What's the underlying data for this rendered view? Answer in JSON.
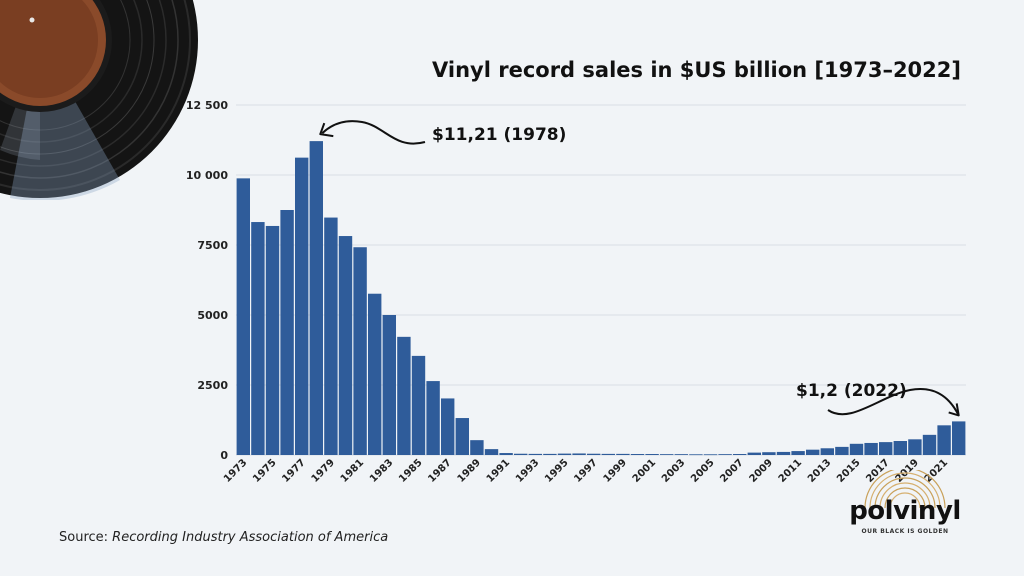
{
  "chart_data": {
    "type": "bar",
    "title": "Vinyl record sales in $US billion [1973–2022]",
    "xlabel": "",
    "ylabel": "",
    "ylim": [
      0,
      12500
    ],
    "yticks": [
      {
        "value": 0,
        "label": "0"
      },
      {
        "value": 2500,
        "label": "2500"
      },
      {
        "value": 5000,
        "label": "5000"
      },
      {
        "value": 7500,
        "label": "7500"
      },
      {
        "value": 10000,
        "label": "10 000"
      },
      {
        "value": 12500,
        "label": "12 500"
      }
    ],
    "grid": "horizontal",
    "bar_color": "#2f5c9a",
    "categories": [
      "1973",
      "1974",
      "1975",
      "1976",
      "1977",
      "1978",
      "1979",
      "1980",
      "1981",
      "1982",
      "1983",
      "1984",
      "1985",
      "1986",
      "1987",
      "1988",
      "1989",
      "1990",
      "1991",
      "1992",
      "1993",
      "1994",
      "1995",
      "1996",
      "1997",
      "1998",
      "1999",
      "2000",
      "2001",
      "2002",
      "2003",
      "2004",
      "2005",
      "2006",
      "2007",
      "2008",
      "2009",
      "2010",
      "2011",
      "2012",
      "2013",
      "2014",
      "2015",
      "2016",
      "2017",
      "2018",
      "2019",
      "2020",
      "2021",
      "2022"
    ],
    "xtick_labels": [
      "1973",
      "1975",
      "1977",
      "1979",
      "1981",
      "1983",
      "1985",
      "1987",
      "1989",
      "1991",
      "1993",
      "1995",
      "1997",
      "1999",
      "2001",
      "2003",
      "2005",
      "2007",
      "2009",
      "2011",
      "2013",
      "2015",
      "2017",
      "2019",
      "2021"
    ],
    "values": [
      9880,
      8320,
      8180,
      8750,
      10620,
      11210,
      8480,
      7820,
      7420,
      5760,
      5000,
      4220,
      3540,
      2640,
      2020,
      1320,
      530,
      210,
      70,
      45,
      40,
      40,
      50,
      55,
      45,
      40,
      40,
      35,
      35,
      30,
      30,
      25,
      25,
      30,
      35,
      85,
      100,
      110,
      140,
      190,
      240,
      290,
      400,
      430,
      460,
      500,
      560,
      720,
      1060,
      1200
    ],
    "annotations": [
      {
        "text": "$11,21 (1978)",
        "category": "1978"
      },
      {
        "text": "$1,2 (2022)",
        "category": "2022"
      }
    ],
    "source_label": "Source:",
    "source_name": "Recording Industry Association of America"
  },
  "logo": {
    "word": "polvinyl",
    "tagline": "OUR BLACK IS GOLDEN"
  }
}
